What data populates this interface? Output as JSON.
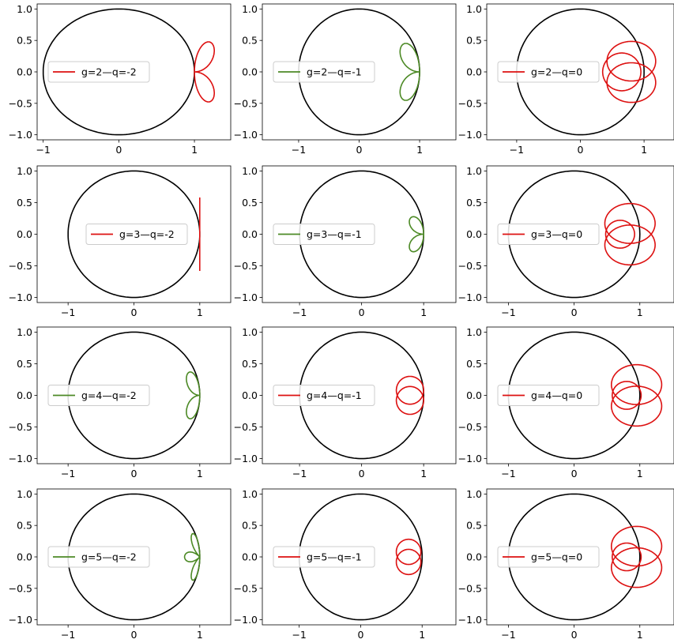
{
  "figure": {
    "rows": 4,
    "cols": 3
  },
  "colors": {
    "circle": "#000000",
    "red": "#dd1111",
    "green": "#4d8a26",
    "legend_border": "#cccccc"
  },
  "axes_common": {
    "ylim": [
      -1.08,
      1.08
    ],
    "yticks": [
      1.0,
      0.5,
      0.0,
      -0.5,
      -1.0
    ],
    "ytick_labels": [
      "1.0",
      "0.5",
      "0.0",
      "−0.5",
      "−1.0"
    ],
    "xticks": [
      -1,
      0,
      1
    ],
    "xtick_labels": [
      "−1",
      "0",
      "1"
    ],
    "grid": false,
    "legend_location": "center-left"
  },
  "chart_data": [
    {
      "type": "line",
      "g": 2,
      "q": -2,
      "series": [
        {
          "name": "unit circle"
        },
        {
          "name": "g=2—q=-2",
          "color": "#dd1111"
        }
      ],
      "xlim": [
        -1.08,
        1.48
      ]
    },
    {
      "type": "line",
      "g": 2,
      "q": -1,
      "series": [
        {
          "name": "unit circle"
        },
        {
          "name": "g=2—q=-1",
          "color": "#4d8a26"
        }
      ],
      "xlim": [
        -1.6,
        1.6
      ]
    },
    {
      "type": "line",
      "g": 2,
      "q": 0,
      "series": [
        {
          "name": "unit circle"
        },
        {
          "name": "g=2—q=0",
          "color": "#dd1111"
        }
      ],
      "xlim": [
        -1.47,
        1.47
      ]
    },
    {
      "type": "line",
      "g": 3,
      "q": -2,
      "series": [
        {
          "name": "unit circle"
        },
        {
          "name": "g=3—q=-2",
          "color": "#dd1111"
        }
      ],
      "xlim": [
        -1.47,
        1.47
      ]
    },
    {
      "type": "line",
      "g": 3,
      "q": -1,
      "series": [
        {
          "name": "unit circle"
        },
        {
          "name": "g=3—q=-1",
          "color": "#4d8a26"
        }
      ],
      "xlim": [
        -1.6,
        1.52
      ]
    },
    {
      "type": "line",
      "g": 3,
      "q": 0,
      "series": [
        {
          "name": "unit circle"
        },
        {
          "name": "g=3—q=0",
          "color": "#dd1111"
        }
      ],
      "xlim": [
        -1.33,
        1.52
      ]
    },
    {
      "type": "line",
      "g": 4,
      "q": -2,
      "series": [
        {
          "name": "unit circle"
        },
        {
          "name": "g=4—q=-2",
          "color": "#4d8a26"
        }
      ],
      "xlim": [
        -1.47,
        1.47
      ]
    },
    {
      "type": "line",
      "g": 4,
      "q": -1,
      "series": [
        {
          "name": "unit circle"
        },
        {
          "name": "g=4—q=-1",
          "color": "#dd1111"
        }
      ],
      "xlim": [
        -1.6,
        1.52
      ]
    },
    {
      "type": "line",
      "g": 4,
      "q": 0,
      "series": [
        {
          "name": "unit circle"
        },
        {
          "name": "g=4—q=0",
          "color": "#dd1111"
        }
      ],
      "xlim": [
        -1.33,
        1.52
      ]
    },
    {
      "type": "line",
      "g": 5,
      "q": -2,
      "series": [
        {
          "name": "unit circle"
        },
        {
          "name": "g=5—q=-2",
          "color": "#4d8a26"
        }
      ],
      "xlim": [
        -1.47,
        1.47
      ]
    },
    {
      "type": "line",
      "g": 5,
      "q": -1,
      "series": [
        {
          "name": "unit circle"
        },
        {
          "name": "g=5—q=-1",
          "color": "#dd1111"
        }
      ],
      "xlim": [
        -1.6,
        1.55
      ]
    },
    {
      "type": "line",
      "g": 5,
      "q": 0,
      "series": [
        {
          "name": "unit circle"
        },
        {
          "name": "g=5—q=0",
          "color": "#dd1111"
        }
      ],
      "xlim": [
        -1.33,
        1.52
      ]
    }
  ]
}
